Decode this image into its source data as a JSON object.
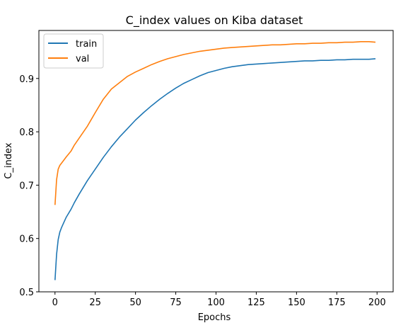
{
  "chart_data": {
    "type": "line",
    "title": "C_index values on Kiba dataset",
    "xlabel": "Epochs",
    "ylabel": "C_index",
    "xlim": [
      -10,
      210
    ],
    "ylim": [
      0.5,
      0.99
    ],
    "xticks": [
      0,
      25,
      50,
      75,
      100,
      125,
      150,
      175,
      200
    ],
    "yticks": [
      0.5,
      0.6,
      0.7,
      0.8,
      0.9
    ],
    "grid": false,
    "legend_position": "upper-left",
    "series": [
      {
        "name": "train",
        "color": "#1f77b4",
        "x": [
          0,
          1,
          2,
          3,
          4,
          5,
          7,
          10,
          12,
          15,
          20,
          25,
          30,
          35,
          40,
          45,
          50,
          55,
          60,
          65,
          70,
          75,
          80,
          85,
          90,
          95,
          100,
          105,
          110,
          115,
          120,
          125,
          130,
          135,
          140,
          145,
          150,
          155,
          160,
          165,
          170,
          175,
          180,
          185,
          190,
          195,
          199
        ],
        "values": [
          0.522,
          0.57,
          0.598,
          0.612,
          0.62,
          0.627,
          0.64,
          0.655,
          0.667,
          0.683,
          0.708,
          0.73,
          0.752,
          0.772,
          0.79,
          0.806,
          0.822,
          0.836,
          0.849,
          0.861,
          0.872,
          0.882,
          0.891,
          0.898,
          0.905,
          0.911,
          0.915,
          0.919,
          0.922,
          0.924,
          0.926,
          0.927,
          0.928,
          0.929,
          0.93,
          0.931,
          0.932,
          0.933,
          0.933,
          0.934,
          0.934,
          0.935,
          0.935,
          0.936,
          0.936,
          0.936,
          0.937
        ]
      },
      {
        "name": "val",
        "color": "#ff7f0e",
        "x": [
          0,
          1,
          2,
          3,
          4,
          5,
          7,
          10,
          12,
          15,
          20,
          25,
          30,
          35,
          40,
          45,
          50,
          55,
          60,
          65,
          70,
          75,
          80,
          85,
          90,
          95,
          100,
          105,
          110,
          115,
          120,
          125,
          130,
          135,
          140,
          145,
          150,
          155,
          160,
          165,
          170,
          175,
          180,
          185,
          190,
          195,
          199
        ],
        "values": [
          0.663,
          0.71,
          0.73,
          0.737,
          0.741,
          0.745,
          0.753,
          0.764,
          0.775,
          0.788,
          0.81,
          0.836,
          0.861,
          0.88,
          0.892,
          0.904,
          0.912,
          0.919,
          0.926,
          0.932,
          0.937,
          0.941,
          0.945,
          0.948,
          0.951,
          0.953,
          0.955,
          0.957,
          0.958,
          0.959,
          0.96,
          0.961,
          0.962,
          0.963,
          0.963,
          0.964,
          0.965,
          0.965,
          0.966,
          0.966,
          0.967,
          0.967,
          0.968,
          0.968,
          0.969,
          0.969,
          0.968
        ]
      }
    ]
  }
}
